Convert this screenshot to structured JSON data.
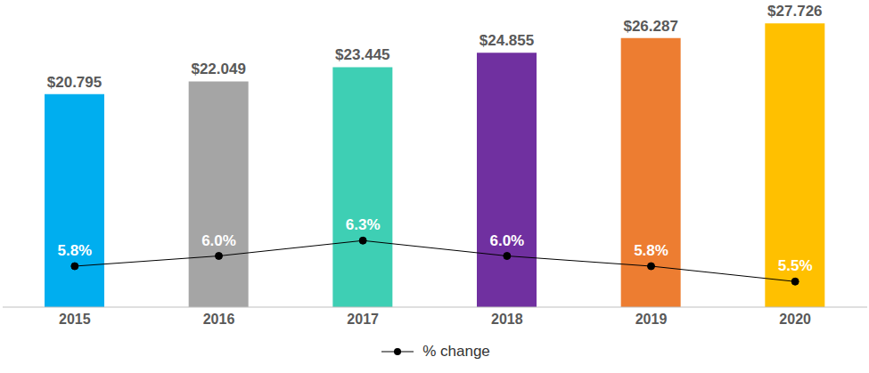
{
  "chart_data": {
    "type": "bar",
    "categories": [
      "2015",
      "2016",
      "2017",
      "2018",
      "2019",
      "2020"
    ],
    "values": [
      20.795,
      22.049,
      23.445,
      24.855,
      26.287,
      27.726
    ],
    "value_labels": [
      "$20.795",
      "$22.049",
      "$23.445",
      "$24.855",
      "$26.287",
      "$27.726"
    ],
    "colors": [
      "#00aeef",
      "#a5a5a5",
      "#3ecfb4",
      "#7030a0",
      "#ed7d31",
      "#ffc000"
    ],
    "data_labels": true,
    "ylim": [
      0,
      30
    ],
    "yticks": [
      0,
      10,
      20,
      30
    ],
    "y2lim": [
      5,
      11
    ],
    "y2ticks": [
      5,
      7,
      9,
      11
    ],
    "tick_labels": "x",
    "grid": false,
    "legend": "bottom",
    "series": [
      {
        "name": "% change",
        "type": "line",
        "axis": "y2",
        "color": "#000000",
        "marker": "circle",
        "values": [
          5.8,
          6.0,
          6.3,
          6.0,
          5.8,
          5.5
        ],
        "value_labels": [
          "5.8%",
          "6.0%",
          "6.3%",
          "6.0%",
          "5.8%",
          "5.5%"
        ]
      }
    ]
  }
}
